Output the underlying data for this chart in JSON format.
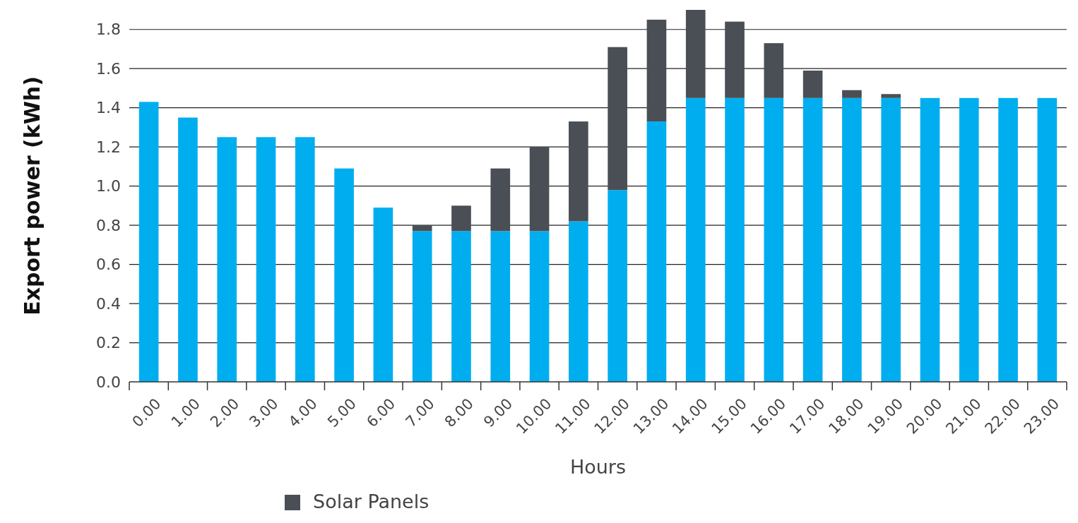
{
  "chart_data": {
    "type": "bar",
    "stacked": true,
    "xlabel": "Hours",
    "ylabel": "Export power (kWh)",
    "categories": [
      "0.00",
      "1.00",
      "2.00",
      "3.00",
      "4.00",
      "5.00",
      "6.00",
      "7.00",
      "8.00",
      "9.00",
      "10.00",
      "11.00",
      "12.00",
      "13.00",
      "14.00",
      "15.00",
      "16.00",
      "17.00",
      "18.00",
      "19.00",
      "20.00",
      "21.00",
      "22.00",
      "23.00"
    ],
    "series": [
      {
        "color": "#00aeef",
        "values": [
          1.43,
          1.35,
          1.25,
          1.25,
          1.25,
          1.09,
          0.89,
          0.77,
          0.77,
          0.77,
          0.77,
          0.82,
          0.98,
          1.33,
          1.45,
          1.45,
          1.45,
          1.45,
          1.45,
          1.45,
          1.45,
          1.45,
          1.45,
          1.45
        ]
      },
      {
        "name": "Solar Panels",
        "color": "#4a4f55",
        "values": [
          0,
          0,
          0,
          0,
          0,
          0,
          0,
          0.03,
          0.13,
          0.32,
          0.43,
          0.51,
          0.73,
          0.52,
          0.45,
          0.39,
          0.28,
          0.14,
          0.04,
          0.02,
          0,
          0,
          0,
          0
        ]
      }
    ],
    "ylim": [
      0,
      1.9
    ],
    "yticks": [
      {
        "value": 0,
        "label": "0.0"
      },
      0.2,
      0.4,
      0.6,
      0.8,
      {
        "value": 1,
        "label": "1.0"
      },
      1.2,
      1.4,
      1.6,
      1.8
    ],
    "grid": "y",
    "legend": "bottom"
  }
}
